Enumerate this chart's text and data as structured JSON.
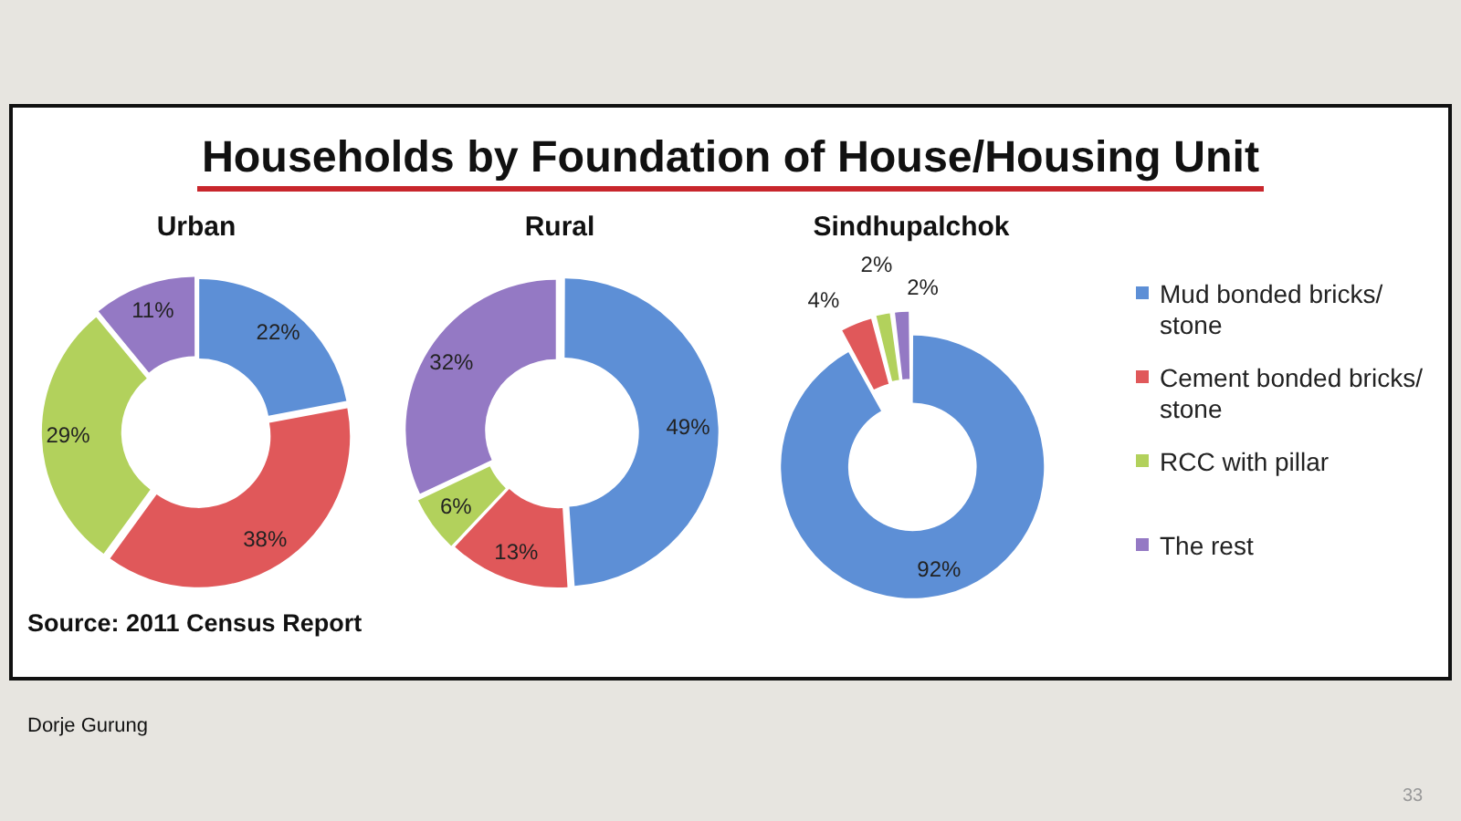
{
  "chart_data": [
    {
      "type": "other",
      "title": "Households by Foundation of House/Housing Unit",
      "annotations": [
        "Source: 2011 Census Report",
        "Dorje Gurung",
        "33"
      ]
    },
    {
      "type": "donut",
      "title": "Urban",
      "categories": [
        null,
        null,
        null,
        null
      ],
      "values": [
        22,
        38,
        29,
        11
      ],
      "colors": [
        "#5d8fd6",
        "#e0585a",
        "#b2d15c",
        "#9479c4"
      ],
      "value_labels": [
        "22%",
        "38%",
        "29%",
        "11%"
      ]
    },
    {
      "type": "donut",
      "title": "Rural",
      "categories": [
        null,
        null,
        null,
        null
      ],
      "values": [
        49,
        13,
        6,
        32
      ],
      "colors": [
        "#5d8fd6",
        "#e0585a",
        "#b2d15c",
        "#9479c4"
      ],
      "value_labels": [
        "49%",
        "13%",
        "6%",
        "32%"
      ]
    },
    {
      "type": "donut",
      "title": "Sindhupalchok",
      "categories": [
        "Mud bonded bricks/ stone",
        "Cement bonded bricks/ stone",
        "RCC with pillar",
        "The rest"
      ],
      "values": [
        92,
        4,
        2,
        2
      ],
      "colors": [
        "#5d8fd6",
        "#e0585a",
        "#b2d15c",
        "#9479c4"
      ],
      "value_labels": [
        "92%",
        "4%",
        "2%",
        "2%"
      ],
      "legend": "right"
    }
  ]
}
